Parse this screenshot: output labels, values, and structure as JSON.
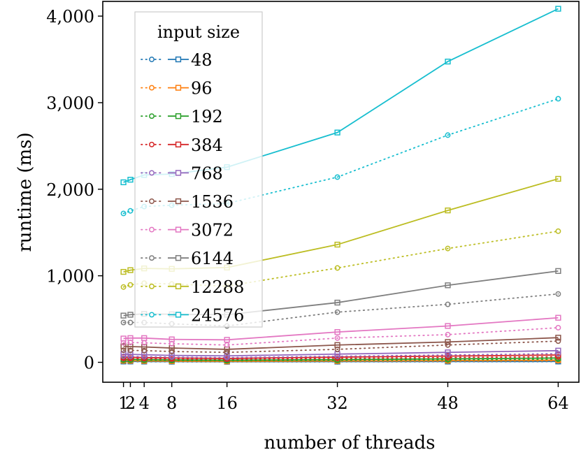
{
  "chart_data": {
    "type": "line",
    "xlabel": "number of threads",
    "ylabel": "runtime (ms)",
    "xlim": [
      -2,
      67
    ],
    "ylim": [
      -230,
      4170
    ],
    "x": [
      1,
      2,
      4,
      8,
      16,
      32,
      48,
      64
    ],
    "xticks": [
      1,
      2,
      4,
      8,
      16,
      32,
      48,
      64
    ],
    "xtick_labels": [
      "1",
      "2",
      "4",
      "8",
      "16",
      "32",
      "48",
      "64"
    ],
    "yticks": [
      0,
      1000,
      2000,
      3000,
      4000
    ],
    "ytick_labels": [
      "0",
      "1,000",
      "2,000",
      "3,000",
      "4,000"
    ],
    "grid": false,
    "legend": {
      "title": "input size",
      "placement": "top-left"
    },
    "series": [
      {
        "name": "48",
        "color": "#1f77b4",
        "dotted": [
          8,
          8,
          7,
          6,
          5,
          6,
          7,
          8
        ],
        "solid": [
          10,
          10,
          9,
          8,
          7,
          8,
          9,
          10
        ]
      },
      {
        "name": "96",
        "color": "#ff7f0e",
        "dotted": [
          15,
          14,
          13,
          11,
          9,
          12,
          15,
          18
        ],
        "solid": [
          20,
          19,
          17,
          14,
          12,
          16,
          20,
          25
        ]
      },
      {
        "name": "192",
        "color": "#2ca02c",
        "dotted": [
          25,
          24,
          23,
          20,
          18,
          22,
          28,
          35
        ],
        "solid": [
          35,
          34,
          32,
          28,
          25,
          32,
          40,
          50
        ]
      },
      {
        "name": "384",
        "color": "#d62728",
        "dotted": [
          45,
          44,
          42,
          38,
          35,
          45,
          55,
          65
        ],
        "solid": [
          60,
          58,
          55,
          50,
          45,
          60,
          72,
          85
        ]
      },
      {
        "name": "768",
        "color": "#9467bd",
        "dotted": [
          70,
          68,
          65,
          60,
          55,
          70,
          85,
          100
        ],
        "solid": [
          95,
          92,
          88,
          80,
          75,
          95,
          115,
          135
        ]
      },
      {
        "name": "1536",
        "color": "#8c564b",
        "dotted": [
          140,
          138,
          135,
          125,
          115,
          150,
          200,
          245
        ],
        "solid": [
          185,
          182,
          178,
          165,
          150,
          200,
          235,
          285
        ]
      },
      {
        "name": "3072",
        "color": "#e377c2",
        "dotted": [
          225,
          230,
          225,
          215,
          200,
          280,
          320,
          400
        ],
        "solid": [
          275,
          280,
          280,
          265,
          260,
          350,
          420,
          515
        ]
      },
      {
        "name": "6144",
        "color": "#7f7f7f",
        "dotted": [
          460,
          460,
          460,
          445,
          420,
          580,
          670,
          790
        ],
        "solid": [
          540,
          550,
          560,
          555,
          550,
          690,
          890,
          1055
        ]
      },
      {
        "name": "12288",
        "color": "#bcbd22",
        "dotted": [
          870,
          895,
          915,
          905,
          880,
          1090,
          1315,
          1515
        ],
        "solid": [
          1045,
          1065,
          1085,
          1080,
          1095,
          1360,
          1755,
          2120
        ]
      },
      {
        "name": "24576",
        "color": "#17becf",
        "dotted": [
          1720,
          1750,
          1800,
          1815,
          1835,
          2140,
          2625,
          3045
        ],
        "solid": [
          2080,
          2110,
          2165,
          2175,
          2255,
          2655,
          3475,
          4085
        ]
      }
    ]
  }
}
